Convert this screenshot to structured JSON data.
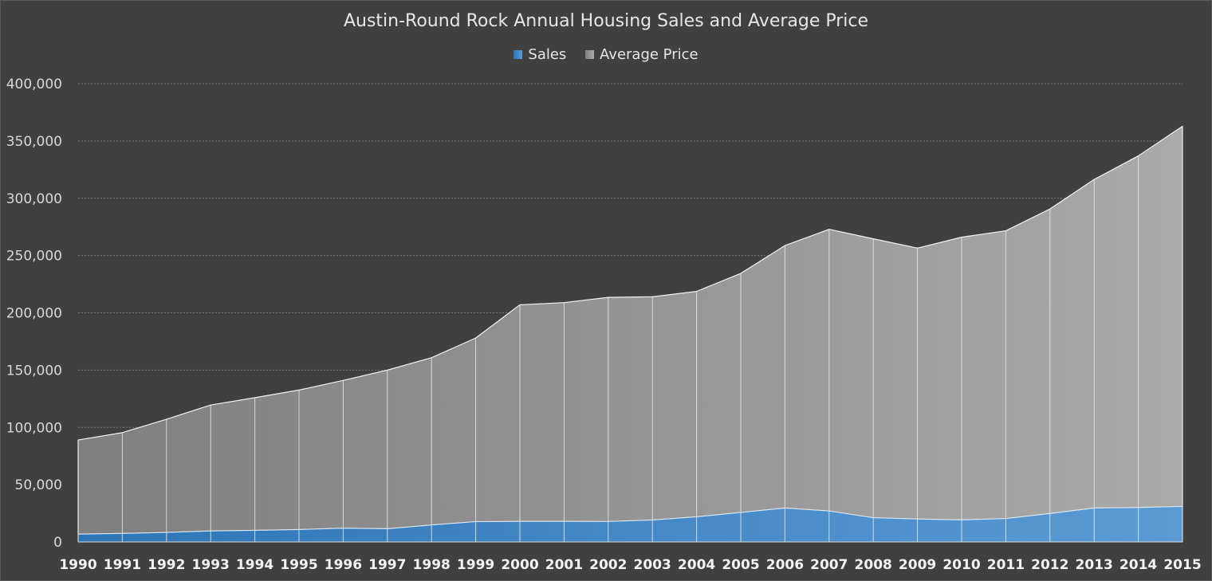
{
  "chart_data": {
    "type": "area",
    "stacked": true,
    "title": "Austin-Round Rock Annual Housing Sales and Average Price",
    "xlabel": "",
    "ylabel": "",
    "categories": [
      "1990",
      "1991",
      "1992",
      "1993",
      "1994",
      "1995",
      "1996",
      "1997",
      "1998",
      "1999",
      "2000",
      "2001",
      "2002",
      "2003",
      "2004",
      "2005",
      "2006",
      "2007",
      "2008",
      "2009",
      "2010",
      "2011",
      "2012",
      "2013",
      "2014",
      "2015"
    ],
    "series": [
      {
        "name": "Sales",
        "color": "#5b9bd5",
        "values": [
          6800,
          7400,
          8300,
          9600,
          10100,
          10800,
          12000,
          11500,
          14800,
          17700,
          17900,
          17900,
          17800,
          19100,
          21900,
          25700,
          29600,
          27000,
          21100,
          20000,
          19200,
          20400,
          24800,
          29600,
          30000,
          31000
        ]
      },
      {
        "name": "Average Price",
        "color": "#a5a5a5",
        "values": [
          82200,
          88000,
          98800,
          109900,
          115800,
          121800,
          129000,
          138500,
          146000,
          160300,
          189100,
          191000,
          195700,
          194900,
          196800,
          208700,
          229100,
          245900,
          243500,
          236500,
          246800,
          251200,
          265900,
          286800,
          307000,
          331900
        ]
      }
    ],
    "ylim": [
      0,
      400000
    ],
    "yticks": [
      "0",
      "50,000",
      "100,000",
      "150,000",
      "200,000",
      "250,000",
      "300,000",
      "350,000",
      "400,000"
    ],
    "grid": true,
    "legend_position": "top"
  }
}
